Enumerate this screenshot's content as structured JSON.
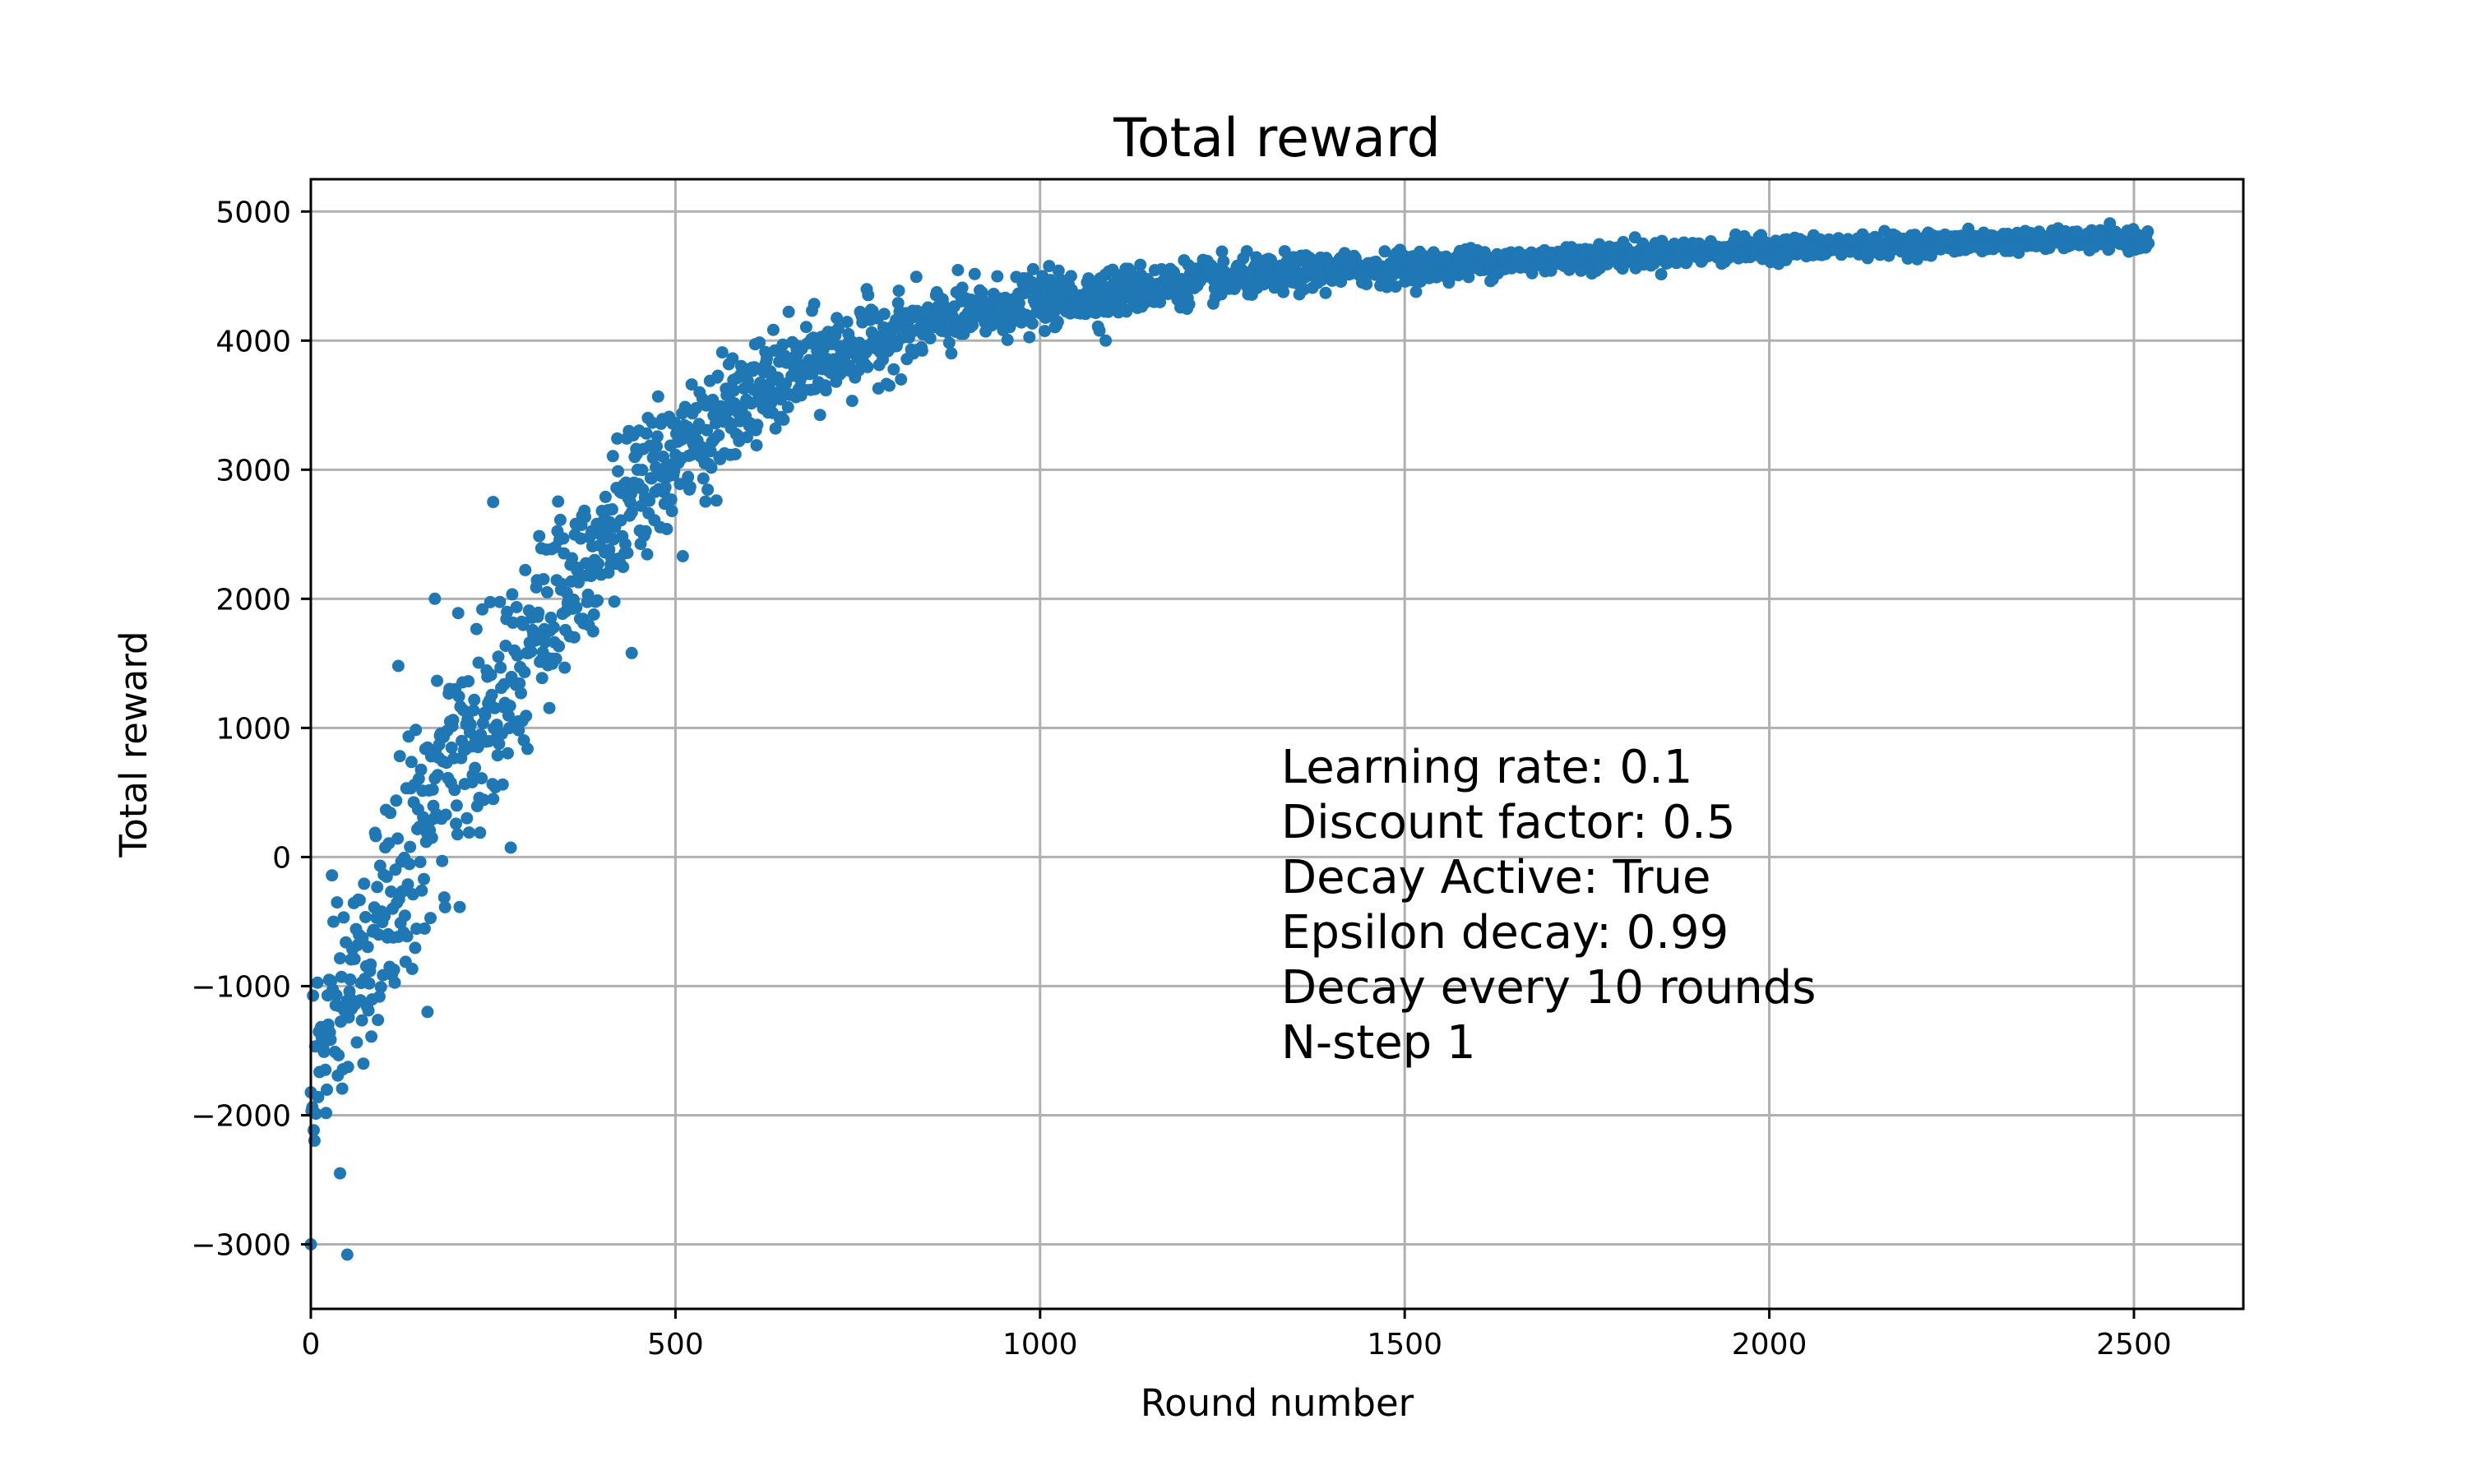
{
  "chart_data": {
    "type": "scatter",
    "title": "Total reward",
    "xlabel": "Round number",
    "ylabel": "Total reward",
    "xlim": [
      0,
      2650
    ],
    "ylim": [
      -3500,
      5250
    ],
    "x_ticks": [
      0,
      500,
      1000,
      1500,
      2000,
      2500
    ],
    "x_tick_labels": [
      "0",
      "500",
      "1000",
      "1500",
      "2000",
      "2500"
    ],
    "y_ticks": [
      -3000,
      -2000,
      -1000,
      0,
      1000,
      2000,
      3000,
      4000,
      5000
    ],
    "y_tick_labels": [
      "−3000",
      "−2000",
      "−1000",
      "0",
      "1000",
      "2000",
      "3000",
      "4000",
      "5000"
    ],
    "grid": true,
    "color": "#1f77b4",
    "n_points": 2520,
    "trend": {
      "x": [
        0,
        50,
        100,
        150,
        200,
        250,
        300,
        350,
        400,
        450,
        500,
        600,
        700,
        800,
        900,
        1000,
        1200,
        1400,
        1600,
        1800,
        2000,
        2200,
        2400,
        2520
      ],
      "y": [
        -1700,
        -1100,
        -500,
        200,
        700,
        1200,
        1700,
        2100,
        2500,
        2800,
        3100,
        3550,
        3850,
        4050,
        4200,
        4300,
        4450,
        4540,
        4600,
        4660,
        4710,
        4750,
        4780,
        4780
      ],
      "spread": [
        450,
        550,
        500,
        550,
        550,
        550,
        500,
        450,
        400,
        350,
        300,
        250,
        220,
        180,
        150,
        130,
        100,
        80,
        70,
        60,
        55,
        50,
        45,
        45
      ]
    },
    "outliers": [
      {
        "x": 0,
        "y": -3000
      },
      {
        "x": 50,
        "y": -3080
      },
      {
        "x": 40,
        "y": -2450
      },
      {
        "x": 160,
        "y": -1200
      },
      {
        "x": 120,
        "y": 1480
      },
      {
        "x": 170,
        "y": 2000
      },
      {
        "x": 250,
        "y": 2750
      },
      {
        "x": 440,
        "y": 1580
      },
      {
        "x": 510,
        "y": 2330
      },
      {
        "x": 1090,
        "y": 4000
      }
    ],
    "annotation": [
      "Learning rate: 0.1",
      "Discount factor: 0.5",
      "Decay Active: True",
      "Epsilon decay: 0.99",
      "Decay every 10 rounds",
      "N-step 1"
    ]
  }
}
